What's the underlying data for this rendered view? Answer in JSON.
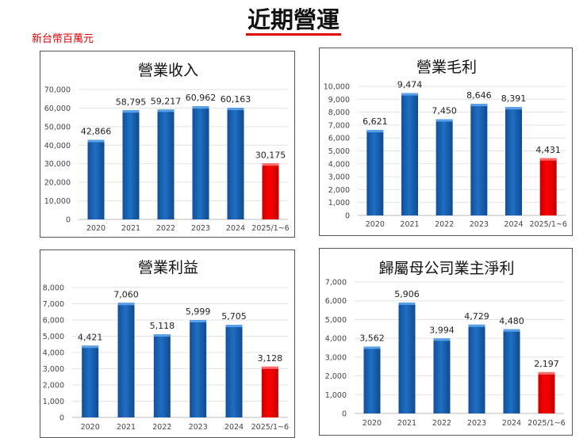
{
  "page_title": "近期營運",
  "unit_label": "新台幣百萬元",
  "colors": {
    "bar": "#1f6fc5",
    "highlight": "#ff0000",
    "title_underline": "#e00000"
  },
  "chart_data": [
    {
      "type": "bar",
      "title": "營業收入",
      "categories": [
        "2020",
        "2021",
        "2022",
        "2023",
        "2024",
        "2025/1~6"
      ],
      "values": [
        42866,
        58795,
        59217,
        60962,
        60163,
        30175
      ],
      "value_labels": [
        "42,866",
        "58,795",
        "59,217",
        "60,962",
        "60,163",
        "30,175"
      ],
      "ylim": [
        0,
        70000
      ],
      "yticks": [
        "0",
        "10,000",
        "20,000",
        "30,000",
        "40,000",
        "50,000",
        "60,000",
        "70,000"
      ],
      "grid": true,
      "highlight_index": 5
    },
    {
      "type": "bar",
      "title": "營業毛利",
      "categories": [
        "2020",
        "2021",
        "2022",
        "2023",
        "2024",
        "2025/1~6"
      ],
      "values": [
        6621,
        9474,
        7450,
        8646,
        8391,
        4431
      ],
      "value_labels": [
        "6,621",
        "9,474",
        "7,450",
        "8,646",
        "8,391",
        "4,431"
      ],
      "ylim": [
        0,
        10000
      ],
      "yticks": [
        "0",
        "1,000",
        "2,000",
        "3,000",
        "4,000",
        "5,000",
        "6,000",
        "7,000",
        "8,000",
        "9,000",
        "10,000"
      ],
      "grid": true,
      "highlight_index": 5
    },
    {
      "type": "bar",
      "title": "營業利益",
      "categories": [
        "2020",
        "2021",
        "2022",
        "2023",
        "2024",
        "2025/1~6"
      ],
      "values": [
        4421,
        7060,
        5118,
        5999,
        5705,
        3128
      ],
      "value_labels": [
        "4,421",
        "7,060",
        "5,118",
        "5,999",
        "5,705",
        "3,128"
      ],
      "ylim": [
        0,
        8000
      ],
      "yticks": [
        "0",
        "1,000",
        "2,000",
        "3,000",
        "4,000",
        "5,000",
        "6,000",
        "7,000",
        "8,000"
      ],
      "grid": true,
      "highlight_index": 5
    },
    {
      "type": "bar",
      "title": "歸屬母公司業主淨利",
      "categories": [
        "2020",
        "2021",
        "2022",
        "2023",
        "2024",
        "2025/1~6"
      ],
      "values": [
        3562,
        5906,
        3994,
        4729,
        4480,
        2197
      ],
      "value_labels": [
        "3,562",
        "5,906",
        "3,994",
        "4,729",
        "4,480",
        "2,197"
      ],
      "ylim": [
        0,
        7000
      ],
      "yticks": [
        "0",
        "1,000",
        "2,000",
        "3,000",
        "4,000",
        "5,000",
        "6,000",
        "7,000"
      ],
      "grid": true,
      "highlight_index": 5
    }
  ]
}
